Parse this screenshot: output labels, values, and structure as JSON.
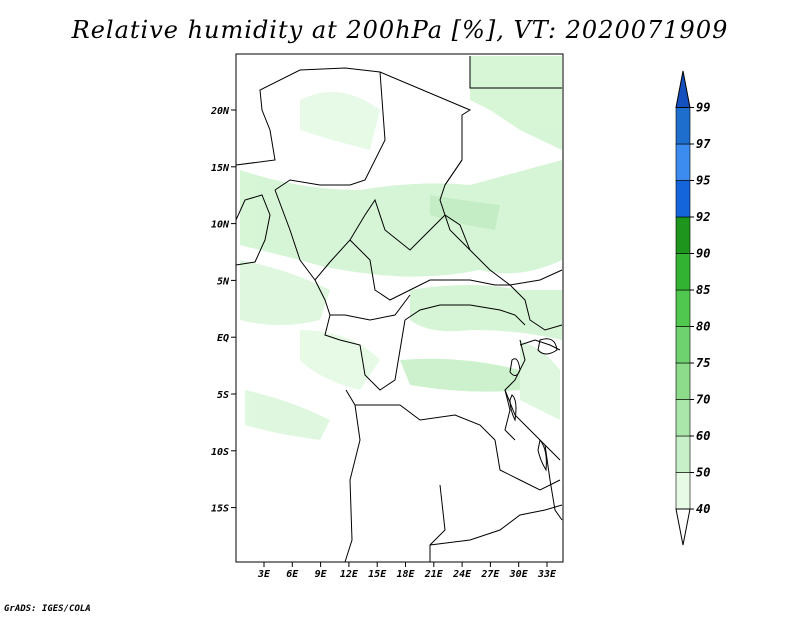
{
  "title": "Relative humidity at 200hPa [%], VT: 2020071909",
  "credit": "GrADS: IGES/COLA",
  "map": {
    "lon_ticks": [
      "3E",
      "6E",
      "9E",
      "12E",
      "15E",
      "18E",
      "21E",
      "24E",
      "27E",
      "30E",
      "33E"
    ],
    "lat_ticks": [
      "20N",
      "15N",
      "10N",
      "5N",
      "EQ",
      "5S",
      "10S",
      "15S"
    ],
    "land_color": "#ffffff",
    "border_color": "#000000"
  },
  "colorbar": {
    "labels": [
      "40",
      "50",
      "60",
      "70",
      "75",
      "80",
      "85",
      "90",
      "92",
      "95",
      "97",
      "99"
    ],
    "colors": [
      "#ffffff",
      "#e6fae6",
      "#c8f0c8",
      "#aae6aa",
      "#8cdc8c",
      "#6ed26e",
      "#50c850",
      "#32b432",
      "#1e961e",
      "#1464dc",
      "#3c8cf0",
      "#1e6ecd",
      "#1450be"
    ]
  }
}
